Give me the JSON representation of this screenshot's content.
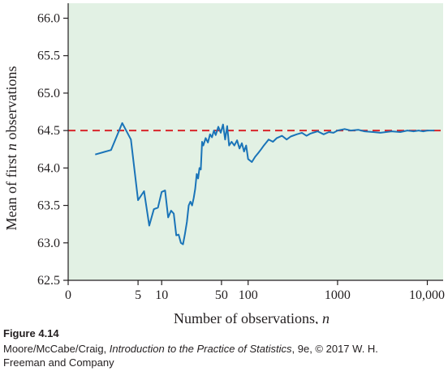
{
  "chart_data": {
    "type": "line",
    "xlabel_main": "Number of observations, ",
    "xlabel_var": "n",
    "ylabel_pre": "Mean of first ",
    "ylabel_var": "n",
    "ylabel_post": " observations",
    "x_scale": "log(n+1)",
    "x_ticks": [
      0,
      5,
      10,
      50,
      100,
      1000,
      10000
    ],
    "x_tick_labels": [
      "0",
      "5",
      "10",
      "50",
      "100",
      "1000",
      "10,000"
    ],
    "y_ticks": [
      62.5,
      63.0,
      63.5,
      64.0,
      64.5,
      65.0,
      65.5,
      66.0
    ],
    "y_tick_labels": [
      "62.5",
      "63.0",
      "63.5",
      "64.0",
      "64.5",
      "65.0",
      "65.5",
      "66.0"
    ],
    "xlim": [
      0,
      15000
    ],
    "ylim": [
      62.5,
      66.2
    ],
    "reference_line": {
      "y": 64.5,
      "style": "dashed",
      "color": "#d8262b"
    },
    "series_color": "#1a74b8",
    "plot_background": "#e2f1e4",
    "series": [
      {
        "x": [
          1,
          2,
          3,
          4,
          5,
          6,
          7,
          8,
          9,
          10,
          11,
          12,
          13,
          14,
          15,
          16,
          17,
          18,
          19,
          20,
          21,
          22,
          23,
          24,
          25,
          26,
          27,
          28,
          29,
          30,
          31,
          33,
          35,
          37,
          39,
          41,
          43,
          46,
          49,
          52,
          55,
          58,
          61,
          65,
          70,
          75,
          80,
          85,
          90,
          95,
          100,
          110,
          120,
          130,
          140,
          150,
          170,
          190,
          210,
          240,
          270,
          300,
          350,
          400,
          450,
          500,
          600,
          700,
          800,
          900,
          1000,
          1200,
          1400,
          1700,
          2000,
          2500,
          3000,
          4000,
          5000,
          6000,
          7000,
          8000,
          9000,
          10000,
          12000
        ],
        "y": [
          64.18,
          64.24,
          64.6,
          64.38,
          63.57,
          63.69,
          63.23,
          63.45,
          63.47,
          63.68,
          63.7,
          63.34,
          63.43,
          63.39,
          63.1,
          63.11,
          63.0,
          62.98,
          63.12,
          63.28,
          63.5,
          63.55,
          63.5,
          63.6,
          63.72,
          63.92,
          63.86,
          64.0,
          63.98,
          64.35,
          64.3,
          64.4,
          64.34,
          64.45,
          64.41,
          64.5,
          64.44,
          64.55,
          64.47,
          64.58,
          64.38,
          64.56,
          64.3,
          64.35,
          64.3,
          64.37,
          64.26,
          64.33,
          64.22,
          64.3,
          64.12,
          64.08,
          64.15,
          64.2,
          64.25,
          64.3,
          64.38,
          64.35,
          64.4,
          64.43,
          64.38,
          64.42,
          64.45,
          64.47,
          64.43,
          64.46,
          64.49,
          64.45,
          64.48,
          64.47,
          64.5,
          64.52,
          64.5,
          64.51,
          64.49,
          64.48,
          64.47,
          64.49,
          64.48,
          64.5,
          64.49,
          64.5,
          64.49,
          64.5,
          64.5
        ]
      }
    ]
  },
  "caption": {
    "figure_label": "Figure 4.14",
    "credit_prefix": "Moore/McCabe/Craig, ",
    "credit_title": "Introduction to the Practice of Statistics",
    "credit_suffix": ", 9e, © 2017 W. H.",
    "credit_line2": "Freeman and Company"
  }
}
